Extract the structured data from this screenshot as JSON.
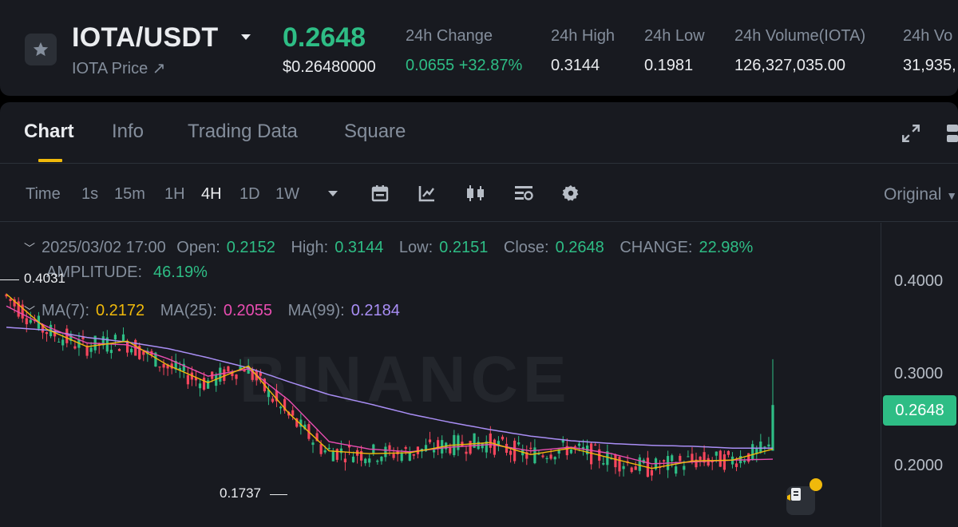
{
  "ticker": {
    "pair": "IOTA/USDT",
    "sub_label": "IOTA Price ↗",
    "last_price": "0.2648",
    "usd_price": "$0.26480000",
    "stats": [
      {
        "label": "24h Change",
        "value": "0.0655 +32.87%",
        "positive": true
      },
      {
        "label": "24h High",
        "value": "0.3144"
      },
      {
        "label": "24h Low",
        "value": "0.1981"
      },
      {
        "label": "24h Volume(IOTA)",
        "value": "126,327,035.00"
      },
      {
        "label": "24h Vo",
        "value": "31,935,"
      }
    ],
    "icons": {
      "favorite": "star-icon",
      "pair_menu": "caret-down-icon"
    }
  },
  "tabs": {
    "items": [
      "Chart",
      "Info",
      "Trading Data",
      "Square"
    ],
    "active": "Chart",
    "accent": "#f0b90b",
    "right_icons": [
      "fullscreen-icon",
      "layout-icon"
    ]
  },
  "toolbar": {
    "timeframes": [
      "Time",
      "1s",
      "15m",
      "1H",
      "4H",
      "1D",
      "1W"
    ],
    "active_timeframe": "4H",
    "tool_icons": [
      "more-caret-icon",
      "calendar-icon",
      "indicator-icon",
      "candle-type-icon",
      "template-icon",
      "settings-icon"
    ],
    "view_mode": "Original"
  },
  "legend": {
    "datetime": "2025/03/02 17:00",
    "open_label": "Open:",
    "open": "0.2152",
    "high_label": "High:",
    "high": "0.3144",
    "low_label": "Low:",
    "low": "0.2151",
    "close_label": "Close:",
    "close": "0.2648",
    "change_label": "CHANGE:",
    "change": "22.98%",
    "amplitude_label": "AMPLITUDE:",
    "amplitude": "46.19%",
    "ma7_label": "MA(7):",
    "ma7": "0.2172",
    "ma25_label": "MA(25):",
    "ma25": "0.2055",
    "ma99_label": "MA(99):",
    "ma99": "0.2184"
  },
  "chart": {
    "watermark": "BINANCE",
    "y_ticks": [
      "0.4000",
      "0.3000",
      "0.2000"
    ],
    "current_price_tag": "0.2648",
    "high_marker": "0.4031",
    "low_marker": "0.1737",
    "colors": {
      "up": "#2ebd85",
      "down": "#f6465d",
      "ma7": "#f0b90b",
      "ma25": "#e94db1",
      "ma99": "#a98ef5"
    }
  },
  "chart_data": {
    "type": "line",
    "title": "",
    "xlabel": "",
    "ylabel": "",
    "ylim": [
      0.165,
      0.425
    ],
    "series": [
      {
        "name": "MA(7)",
        "x": [
          0,
          10,
          20,
          30,
          40,
          50,
          60,
          70,
          80,
          90,
          100,
          110,
          120,
          130,
          140,
          150,
          160,
          170,
          180,
          190
        ],
        "values": [
          0.385,
          0.347,
          0.328,
          0.334,
          0.308,
          0.289,
          0.307,
          0.256,
          0.215,
          0.212,
          0.213,
          0.221,
          0.224,
          0.211,
          0.218,
          0.207,
          0.196,
          0.204,
          0.205,
          0.217
        ]
      },
      {
        "name": "MA(25)",
        "x": [
          0,
          10,
          20,
          30,
          40,
          50,
          60,
          70,
          80,
          90,
          100,
          110,
          120,
          130,
          140,
          150,
          160,
          170,
          180,
          190
        ],
        "values": [
          0.372,
          0.35,
          0.332,
          0.33,
          0.315,
          0.296,
          0.304,
          0.27,
          0.225,
          0.217,
          0.214,
          0.219,
          0.222,
          0.215,
          0.219,
          0.212,
          0.201,
          0.203,
          0.205,
          0.206
        ]
      },
      {
        "name": "MA(99)",
        "x": [
          0,
          10,
          20,
          30,
          40,
          50,
          60,
          70,
          80,
          90,
          100,
          110,
          120,
          130,
          140,
          150,
          160,
          170,
          180,
          190
        ],
        "values": [
          0.349,
          0.346,
          0.338,
          0.333,
          0.326,
          0.316,
          0.305,
          0.29,
          0.276,
          0.266,
          0.255,
          0.246,
          0.238,
          0.231,
          0.226,
          0.223,
          0.221,
          0.22,
          0.218,
          0.218
        ]
      }
    ],
    "last_candle": {
      "open": 0.2152,
      "high": 0.3144,
      "low": 0.2151,
      "close": 0.2648
    }
  }
}
